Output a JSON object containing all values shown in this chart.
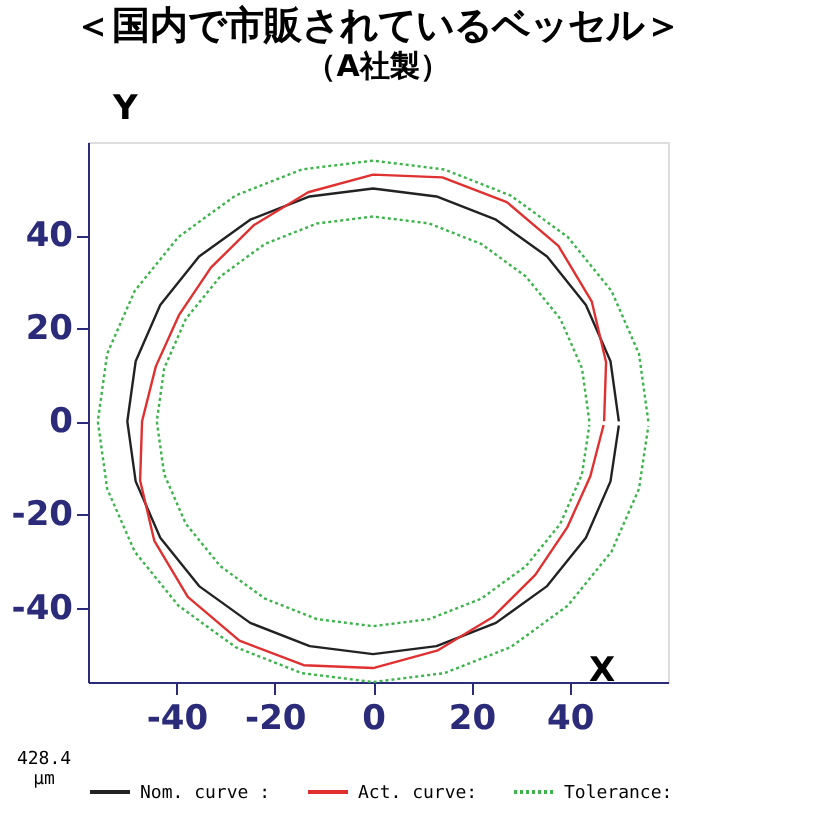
{
  "chart_data": {
    "type": "line",
    "title": "＜国内で市販されているベッセル＞",
    "subtitle": "（A社製）",
    "xlabel": "X",
    "ylabel": "Y",
    "xlim": [
      -58,
      60
    ],
    "ylim": [
      -56,
      60
    ],
    "xticks": [
      -40,
      -20,
      0,
      20,
      40
    ],
    "yticks": [
      -40,
      -20,
      0,
      20,
      40
    ],
    "grid": false,
    "legend": "bottom",
    "marker": "none",
    "annotations": [
      "428.4",
      "µm"
    ],
    "series": [
      {
        "name": "Nom. curve :",
        "color": "#222222",
        "line_style": "solid",
        "x": [
          50,
          48.3,
          43.3,
          35.4,
          25,
          12.9,
          0,
          -12.9,
          -25,
          -35.4,
          -43.3,
          -48.3,
          -50,
          -48.3,
          -43.3,
          -35.4,
          -25,
          -12.9,
          0,
          12.9,
          25,
          35.4,
          43.3,
          48.3,
          50.0
        ],
        "values": [
          0,
          12.9,
          25,
          35.4,
          43.3,
          48.3,
          50,
          48.3,
          43.3,
          35.4,
          25,
          12.9,
          0,
          -12.9,
          -25,
          -35.4,
          -43.3,
          -48.3,
          -50,
          -48.3,
          -43.3,
          -35.4,
          -25,
          -12.9,
          -0.9
        ]
      },
      {
        "name": "Act. curve:",
        "color": "#e03030",
        "line_style": "solid",
        "x": [
          47.0,
          47.4,
          44.5,
          37.7,
          27.2,
          14.1,
          0,
          -13.2,
          -24.3,
          -33.0,
          -39.5,
          -44.2,
          -47.0,
          -47.4,
          -44.5,
          -37.7,
          -27.2,
          -14.1,
          0,
          13.2,
          24.3,
          33.0,
          39.5,
          44.2,
          46.9
        ],
        "values": [
          0,
          12.7,
          25.7,
          37.7,
          47.1,
          52.4,
          53.0,
          49.2,
          42.1,
          33.0,
          22.8,
          11.8,
          0,
          -12.7,
          -25.7,
          -37.7,
          -47.1,
          -52.4,
          -53.0,
          -49.2,
          -42.1,
          -33.0,
          -22.8,
          -11.8,
          -0.8
        ]
      },
      {
        "name": "Tolerance:",
        "color": "#3cb44b",
        "line_style": "dotted",
        "x": [
          56,
          54.1,
          48.5,
          39.6,
          28,
          14.5,
          0,
          -14.5,
          -28,
          -39.6,
          -48.5,
          -54.1,
          -56,
          -54.1,
          -48.5,
          -39.6,
          -28,
          -14.5,
          0,
          14.5,
          28,
          39.6,
          48.5,
          54.1,
          56.0,
          null,
          44,
          42.5,
          38.1,
          31.1,
          22,
          11.4,
          0,
          -11.4,
          -22,
          -31.1,
          -38.1,
          -42.5,
          -44,
          -42.5,
          -38.1,
          -31.1,
          -22,
          -11.4,
          0,
          11.4,
          22,
          31.1,
          38.1,
          42.5,
          44.0
        ],
        "values": [
          0,
          14.5,
          28,
          39.6,
          48.5,
          54.1,
          56,
          54.1,
          48.5,
          39.6,
          28,
          14.5,
          0,
          -14.5,
          -28,
          -39.6,
          -48.5,
          -54.1,
          -56,
          -54.1,
          -48.5,
          -39.6,
          -28,
          -14.5,
          -1.0,
          null,
          0,
          11.4,
          22,
          31.1,
          38.1,
          42.5,
          44,
          42.5,
          38.1,
          31.1,
          22,
          11.4,
          0,
          -11.4,
          -22,
          -31.1,
          -38.1,
          -42.5,
          -44,
          -42.5,
          -38.1,
          -31.1,
          -22,
          -11.4,
          -0.8
        ]
      }
    ]
  }
}
